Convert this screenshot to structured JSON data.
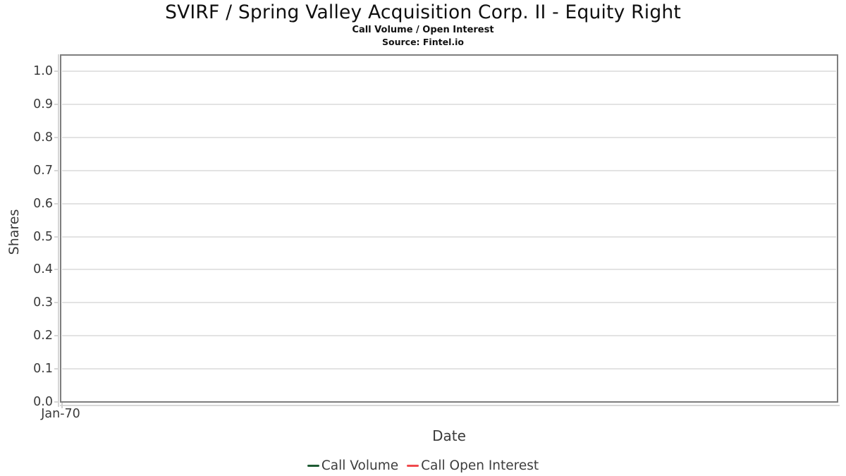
{
  "chart": {
    "title": "SVIRF / Spring Valley Acquisition Corp. II - Equity Right",
    "subtitle": "Call Volume / Open Interest",
    "source": "Source: Fintel.io",
    "ylabel": "Shares",
    "xlabel": "Date"
  },
  "legend": {
    "items": [
      {
        "label": "Call Volume",
        "color": "#1e5b33"
      },
      {
        "label": "Call Open Interest",
        "color": "#f0494c"
      }
    ]
  },
  "colors": {
    "plot_border": "#7e7e7e",
    "gridline": "#e3e3e3",
    "tick": "#d6d6d6",
    "axis_text": "#3a3a3a",
    "title_text": "#0f0f0f"
  },
  "chart_data": {
    "type": "line",
    "title": "SVIRF / Spring Valley Acquisition Corp. II - Equity Right",
    "subtitle": "Call Volume / Open Interest",
    "source": "Source: Fintel.io",
    "xlabel": "Date",
    "ylabel": "Shares",
    "x_ticks": [
      "Jan-70"
    ],
    "y_ticks": [
      "0.0",
      "0.1",
      "0.2",
      "0.3",
      "0.4",
      "0.5",
      "0.6",
      "0.7",
      "0.8",
      "0.9",
      "1.0"
    ],
    "ylim": [
      0.0,
      1.05
    ],
    "grid": "horizontal-only",
    "legend_position": "bottom-center",
    "series": [
      {
        "name": "Call Volume",
        "color": "#1e5b33",
        "x": [],
        "values": []
      },
      {
        "name": "Call Open Interest",
        "color": "#f0494c",
        "x": [],
        "values": []
      }
    ]
  }
}
